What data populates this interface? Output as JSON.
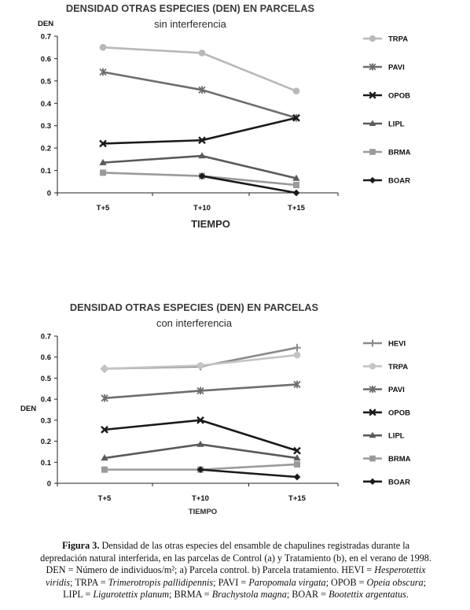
{
  "charts": [
    {
      "chart_data": {
        "type": "line",
        "title": "DENSIDAD OTRAS ESPECIES (DEN) EN PARCELAS",
        "subtitle": "sin interferencia",
        "xlabel": "TIEMPO",
        "ylabel": "DEN",
        "categories": [
          "T+5",
          "T+10",
          "T+15"
        ],
        "ylim": [
          0,
          0.7
        ],
        "yticks": [
          "0",
          "0.1",
          "0.2",
          "0.3",
          "0.4",
          "0.5",
          "0.6",
          "0.7"
        ],
        "legend_position": "right",
        "series": [
          {
            "name": "TRPA",
            "values": [
              0.65,
              0.625,
              0.455
            ],
            "color": "#b8b8b8",
            "marker": "circle"
          },
          {
            "name": "PAVI",
            "values": [
              0.54,
              0.46,
              0.335
            ],
            "color": "#6e6e6e",
            "marker": "asterisk"
          },
          {
            "name": "OPOB",
            "values": [
              0.22,
              0.235,
              0.335
            ],
            "color": "#1a1a1a",
            "marker": "x"
          },
          {
            "name": "LIPL",
            "values": [
              0.135,
              0.165,
              0.065
            ],
            "color": "#5a5a5a",
            "marker": "triangle"
          },
          {
            "name": "BRMA",
            "values": [
              0.09,
              0.075,
              0.035
            ],
            "color": "#9a9a9a",
            "marker": "square"
          },
          {
            "name": "BOAR",
            "values": [
              null,
              0.075,
              0.0
            ],
            "color": "#1a1a1a",
            "marker": "diamond"
          }
        ]
      }
    },
    {
      "chart_data": {
        "type": "line",
        "title": "DENSIDAD OTRAS ESPECIES (DEN) EN PARCELAS",
        "subtitle": "con interferencia",
        "xlabel": "TIEMPO",
        "ylabel": "DEN",
        "categories": [
          "T+5",
          "T+10",
          "T+15"
        ],
        "ylim": [
          0,
          0.7
        ],
        "yticks": [
          "0",
          "0.1",
          "0.2",
          "0.3",
          "0.4",
          "0.5",
          "0.6",
          "0.7"
        ],
        "legend_position": "right",
        "series": [
          {
            "name": "HEVI",
            "values": [
              0.545,
              0.555,
              0.645
            ],
            "color": "#8a8a8a",
            "marker": "plus"
          },
          {
            "name": "TRPA",
            "values": [
              0.545,
              0.56,
              0.61
            ],
            "color": "#c4c4c4",
            "marker": "circle"
          },
          {
            "name": "PAVI",
            "values": [
              0.405,
              0.44,
              0.47
            ],
            "color": "#6e6e6e",
            "marker": "asterisk"
          },
          {
            "name": "OPOB",
            "values": [
              0.255,
              0.3,
              0.155
            ],
            "color": "#1a1a1a",
            "marker": "x"
          },
          {
            "name": "LIPL",
            "values": [
              0.12,
              0.185,
              0.12
            ],
            "color": "#5a5a5a",
            "marker": "triangle"
          },
          {
            "name": "BRMA",
            "values": [
              0.065,
              0.065,
              0.09
            ],
            "color": "#9a9a9a",
            "marker": "square"
          },
          {
            "name": "BOAR",
            "values": [
              null,
              0.065,
              0.03
            ],
            "color": "#1a1a1a",
            "marker": "diamond"
          }
        ]
      }
    }
  ],
  "caption": {
    "label": "Figura 3.",
    "line1": " Densidad de las otras especies del ensamble de chapulines registradas durante la",
    "line2": "depredación natural interferida, en las parcelas de Control (a) y Tratamiento (b), en el verano de 1998.",
    "line3": "DEN = Número de individuos/m²;  a) Parcela control. b) Parcela tratamiento. HEVI = ",
    "hevi_name": "Hesperotettix",
    "hevi_name2": "viridis",
    "trpa_text": "; TRPA = ",
    "trpa_name": "Trimerotropis pallidipennis",
    "pavi_text": "; PAVI = ",
    "pavi_name": "Paropomala virgata",
    "opob_text": "; OPOB = ",
    "opob_name": "Opeia obscura",
    "lipl_text": "LIPL = ",
    "lipl_name": "Ligurotettix planum",
    "brma_text": "; BRMA = ",
    "brma_name": "Brachystola magna",
    "boar_text": "; BOAR = ",
    "boar_name": "Bootettix argentatus",
    "end": "."
  }
}
